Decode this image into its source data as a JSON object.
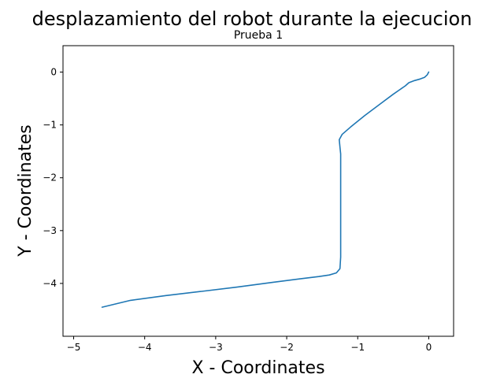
{
  "figure": {
    "suptitle": "desplazamiento del robot durante la ejecucion"
  },
  "chart_data": {
    "type": "line",
    "title": "Prueba 1",
    "xlabel": "X - Coordinates",
    "ylabel": "Y - Coordinates",
    "xlim": [
      -5.15,
      0.35
    ],
    "ylim": [
      -5.0,
      0.5
    ],
    "xticks": [
      -5,
      -4,
      -3,
      -2,
      -1,
      0
    ],
    "yticks": [
      -4,
      -3,
      -2,
      -1,
      0
    ],
    "grid": false,
    "series": [
      {
        "color": "#1f77b4",
        "x": [
          0.0,
          -0.02,
          -0.06,
          -0.12,
          -0.2,
          -0.28,
          -0.33,
          -0.5,
          -0.7,
          -0.9,
          -1.1,
          -1.22,
          -1.26,
          -1.25,
          -1.24,
          -1.24,
          -1.24,
          -1.24,
          -1.24,
          -1.24,
          -1.25,
          -1.3,
          -1.4,
          -1.55,
          -1.8,
          -2.2,
          -2.7,
          -3.2,
          -3.7,
          -4.2,
          -4.6
        ],
        "y": [
          0.0,
          -0.05,
          -0.1,
          -0.13,
          -0.16,
          -0.2,
          -0.26,
          -0.42,
          -0.62,
          -0.82,
          -1.04,
          -1.18,
          -1.28,
          -1.42,
          -1.55,
          -1.7,
          -2.0,
          -2.5,
          -3.0,
          -3.5,
          -3.72,
          -3.8,
          -3.84,
          -3.87,
          -3.91,
          -3.98,
          -4.07,
          -4.15,
          -4.23,
          -4.32,
          -4.45
        ]
      }
    ]
  }
}
